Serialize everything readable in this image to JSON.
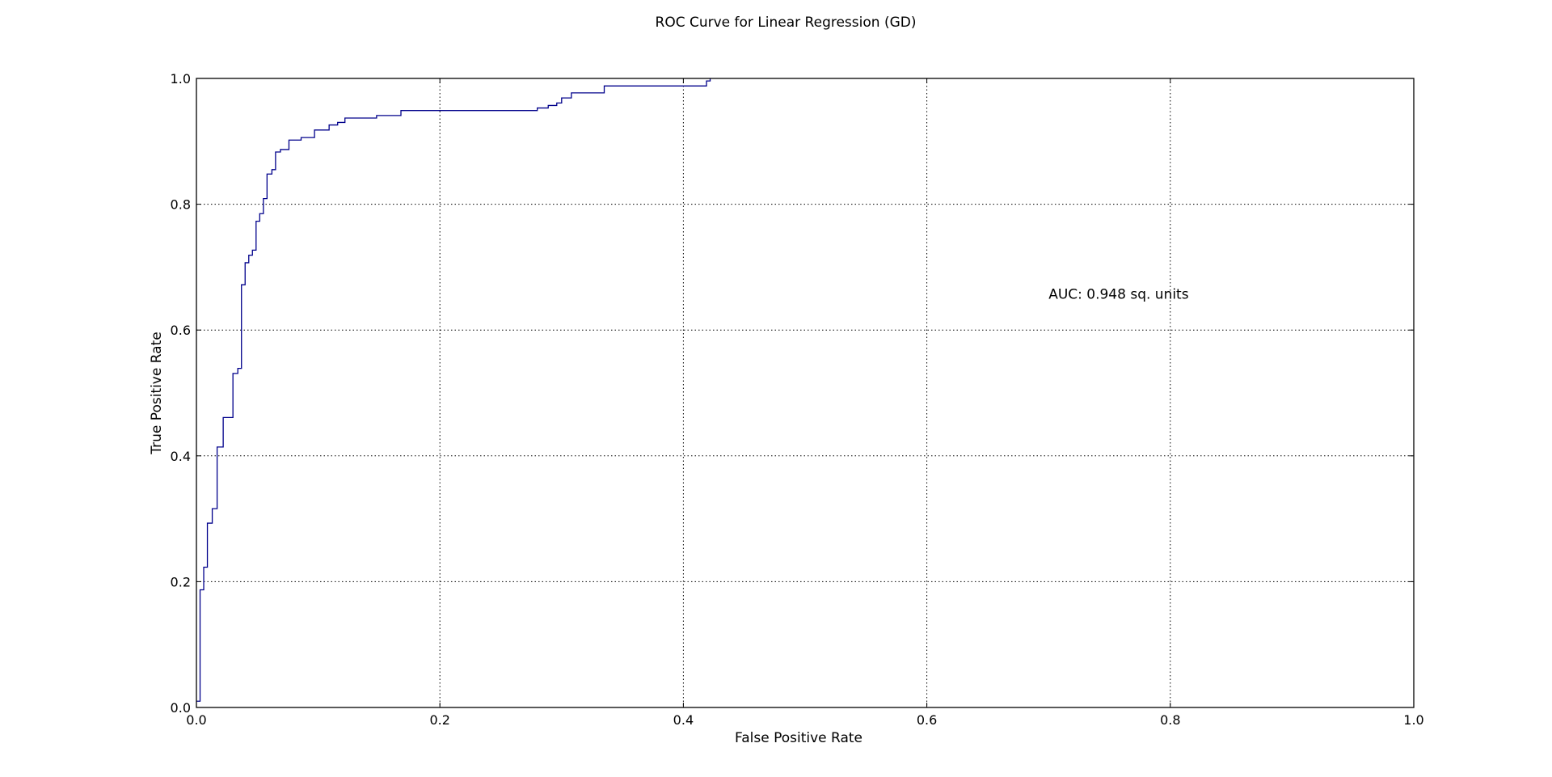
{
  "chart_data": {
    "type": "line",
    "title": "ROC Curve for Linear Regression (GD)",
    "xlabel": "False Positive Rate",
    "ylabel": "True Positive Rate",
    "xlim": [
      0.0,
      1.0
    ],
    "ylim": [
      0.0,
      1.0
    ],
    "xticks": [
      0.0,
      0.2,
      0.4,
      0.6,
      0.8,
      1.0
    ],
    "yticks": [
      0.0,
      0.2,
      0.4,
      0.6,
      0.8,
      1.0
    ],
    "xtick_labels": [
      "0.0",
      "0.2",
      "0.4",
      "0.6",
      "0.8",
      "1.0"
    ],
    "ytick_labels": [
      "0.0",
      "0.2",
      "0.4",
      "0.6",
      "0.8",
      "1.0"
    ],
    "grid": true,
    "line_color": "#00008b",
    "annotation": {
      "text": "AUC: 0.948 sq. units",
      "x": 0.7,
      "y": 0.65
    },
    "series": [
      {
        "step": "post",
        "x": [
          0.0,
          0.003,
          0.006,
          0.009,
          0.013,
          0.017,
          0.022,
          0.03,
          0.034,
          0.037,
          0.04,
          0.043,
          0.046,
          0.049,
          0.052,
          0.055,
          0.058,
          0.062,
          0.065,
          0.069,
          0.076,
          0.08,
          0.086,
          0.097,
          0.109,
          0.116,
          0.122,
          0.148,
          0.168,
          0.28,
          0.289,
          0.296,
          0.3,
          0.308,
          0.335,
          0.419,
          0.422
        ],
        "y": [
          0.01,
          0.187,
          0.223,
          0.293,
          0.316,
          0.414,
          0.461,
          0.531,
          0.539,
          0.672,
          0.707,
          0.719,
          0.727,
          0.773,
          0.785,
          0.809,
          0.848,
          0.855,
          0.883,
          0.887,
          0.902,
          0.902,
          0.906,
          0.918,
          0.926,
          0.93,
          0.937,
          0.941,
          0.949,
          0.953,
          0.957,
          0.961,
          0.969,
          0.977,
          0.988,
          0.996,
          1.0
        ],
        "x_end": 0.422
      }
    ]
  }
}
